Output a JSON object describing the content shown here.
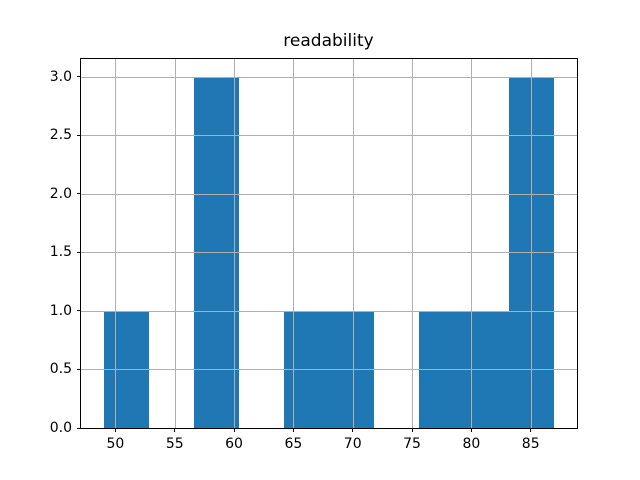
{
  "figure": {
    "background": "#ffffff"
  },
  "chart_data": {
    "type": "bar",
    "subtype": "histogram",
    "title": "readability",
    "xlabel": "",
    "ylabel": "",
    "bin_edges": [
      49.0,
      52.8,
      56.6,
      60.4,
      64.2,
      68.0,
      71.8,
      75.6,
      79.4,
      83.2,
      87.0
    ],
    "counts": [
      1,
      0,
      3,
      0,
      1,
      1,
      0,
      1,
      1,
      3
    ],
    "x_ticks": [
      50,
      55,
      60,
      65,
      70,
      75,
      80,
      85
    ],
    "x_tick_labels": [
      "50",
      "55",
      "60",
      "65",
      "70",
      "75",
      "80",
      "85"
    ],
    "y_ticks": [
      0.0,
      0.5,
      1.0,
      1.5,
      2.0,
      2.5,
      3.0
    ],
    "y_tick_labels": [
      "0.0",
      "0.5",
      "1.0",
      "1.5",
      "2.0",
      "2.5",
      "3.0"
    ],
    "xlim": [
      47.1,
      88.9
    ],
    "ylim": [
      0,
      3.15
    ],
    "grid": true,
    "legend": false,
    "bar_color": "#1f77b4",
    "grid_color": "#b0b0b0",
    "axis_color": "#000000"
  }
}
